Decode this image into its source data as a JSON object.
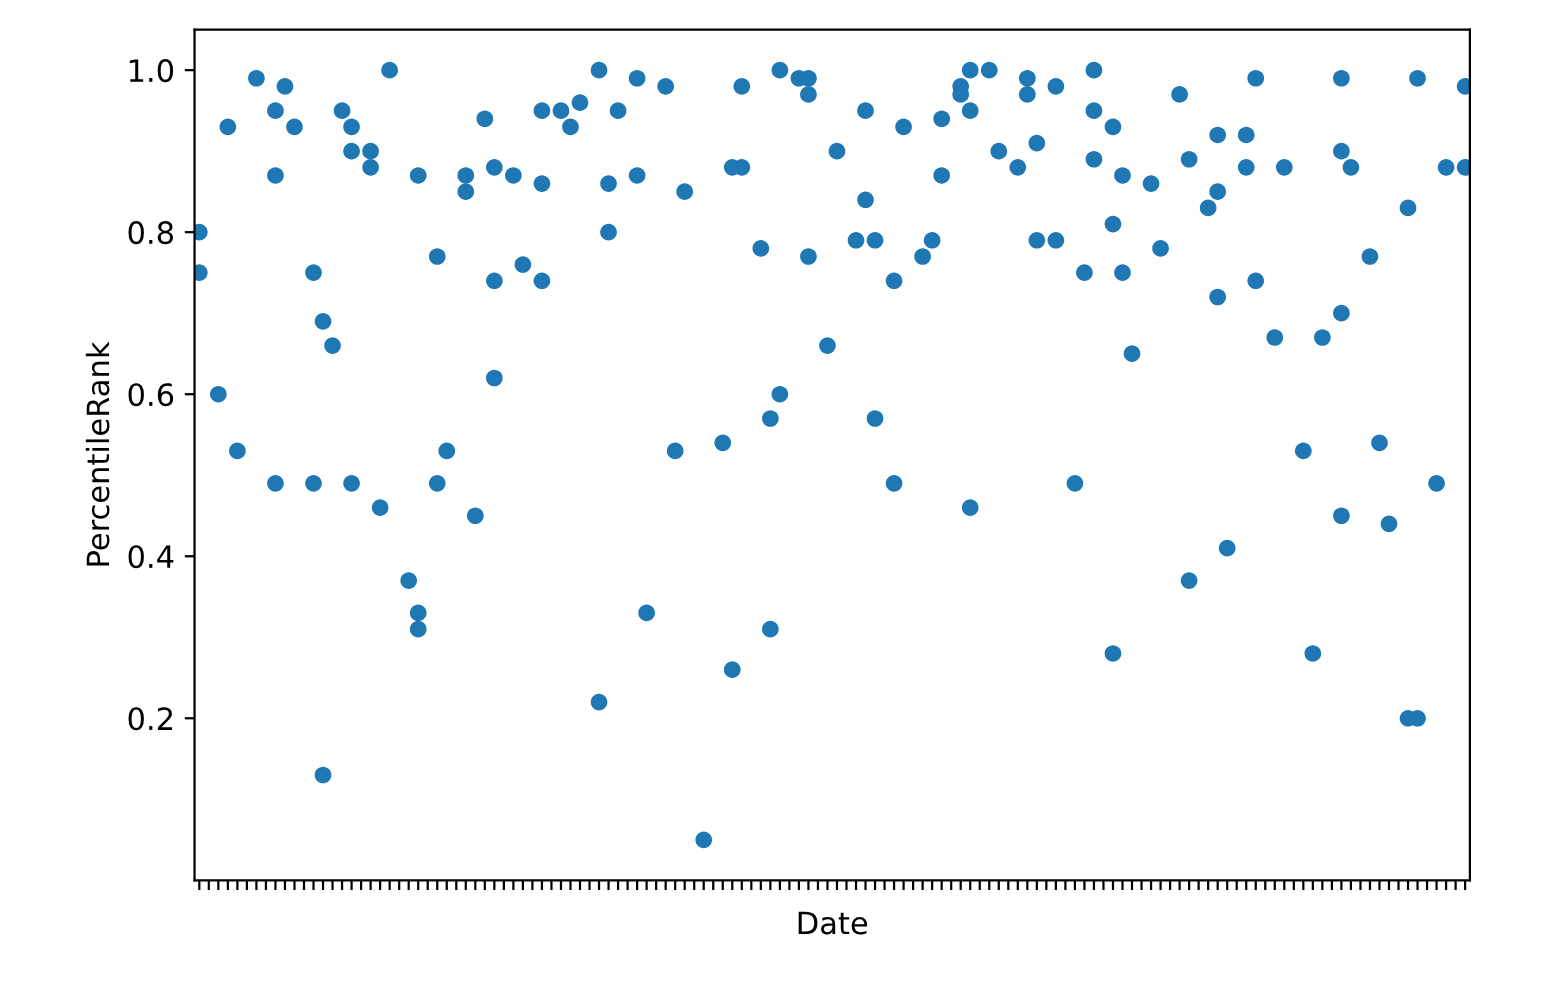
{
  "chart_data": {
    "type": "scatter",
    "xlabel": "Date",
    "ylabel": "PercentileRank",
    "marker": "circle",
    "grid": false,
    "categories": [
      null,
      null,
      null,
      null,
      null,
      null,
      null,
      null,
      null,
      null,
      null,
      null,
      null,
      null,
      null,
      null,
      null,
      null,
      null,
      null,
      null,
      null,
      null,
      null,
      null,
      null,
      null,
      null,
      null,
      null,
      null,
      null,
      null,
      null,
      null,
      null,
      null,
      null,
      null,
      null,
      null,
      null,
      null,
      null,
      null,
      null,
      null,
      null,
      null,
      null,
      null,
      null,
      null,
      null,
      null,
      null,
      null,
      null,
      null,
      null,
      null,
      null,
      null,
      null,
      null,
      null,
      null,
      null,
      null,
      null,
      null,
      null,
      null,
      null,
      null,
      null,
      null,
      null,
      null,
      null,
      null,
      null,
      null,
      null,
      null,
      null,
      null,
      null,
      null,
      null,
      null,
      null,
      null,
      null,
      null,
      null,
      null,
      null,
      null,
      null,
      null,
      null,
      null,
      null,
      null,
      null,
      null,
      null,
      null,
      null,
      null,
      null,
      null,
      null,
      null,
      null,
      null,
      null,
      null,
      null,
      null,
      null,
      null,
      null,
      null,
      null,
      null,
      null,
      null,
      null,
      null,
      null,
      null,
      null
    ],
    "ylim": [
      0.0,
      1.05
    ],
    "yticks": [
      0.2,
      0.4,
      0.6,
      0.8,
      {
        "value": 1,
        "label": "1.0"
      }
    ],
    "series": [
      {
        "color": "#1f77b4",
        "values": [
          0.8,
          null,
          0.6,
          0.93,
          0.53,
          null,
          0.99,
          null,
          0.95,
          0.98,
          0.93,
          null,
          0.75,
          0.69,
          0.66,
          0.95,
          0.93,
          null,
          0.9,
          0.46,
          1.0,
          null,
          0.37,
          0.87,
          null,
          0.77,
          0.53,
          null,
          0.87,
          0.45,
          0.94,
          0.88,
          null,
          0.87,
          0.76,
          null,
          0.95,
          null,
          0.95,
          0.93,
          0.96,
          null,
          1.0,
          0.86,
          0.95,
          null,
          0.99,
          0.33,
          null,
          0.98,
          0.53,
          0.85,
          null,
          0.05,
          null,
          0.54,
          0.88,
          0.98,
          null,
          0.78,
          0.57,
          1.0,
          null,
          0.99,
          0.99,
          null,
          0.66,
          0.9,
          null,
          0.79,
          0.95,
          0.79,
          null,
          0.74,
          0.93,
          null,
          0.77,
          0.79,
          0.94,
          null,
          0.98,
          1.0,
          null,
          1.0,
          0.9,
          null,
          0.88,
          0.99,
          0.91,
          null,
          0.98,
          null,
          0.49,
          0.75,
          1.0,
          null,
          0.93,
          0.87,
          0.65,
          null,
          0.86,
          0.78,
          null,
          0.97,
          0.89,
          null,
          0.83,
          0.92,
          0.41,
          null,
          0.92,
          0.99,
          null,
          0.67,
          0.88,
          null,
          0.53,
          0.28,
          0.67,
          null,
          0.99,
          0.88,
          null,
          0.77,
          0.54,
          0.44,
          null,
          0.83,
          0.99,
          null,
          0.49,
          0.88,
          null,
          0.98
        ]
      },
      {
        "color": "#1f77b4",
        "values": [
          0.75,
          null,
          null,
          null,
          null,
          null,
          null,
          null,
          0.87,
          null,
          null,
          null,
          0.49,
          0.13,
          null,
          null,
          0.9,
          null,
          0.88,
          null,
          null,
          null,
          null,
          0.33,
          null,
          0.49,
          null,
          null,
          0.85,
          null,
          null,
          0.74,
          null,
          null,
          null,
          null,
          0.86,
          null,
          null,
          null,
          null,
          null,
          0.22,
          0.8,
          null,
          null,
          0.87,
          null,
          null,
          null,
          null,
          null,
          null,
          null,
          null,
          null,
          0.26,
          0.88,
          null,
          null,
          0.31,
          0.6,
          null,
          null,
          0.97,
          null,
          null,
          null,
          null,
          null,
          0.84,
          0.57,
          null,
          0.49,
          null,
          null,
          null,
          null,
          0.87,
          null,
          0.97,
          0.95,
          null,
          null,
          null,
          null,
          null,
          0.97,
          0.79,
          null,
          0.79,
          null,
          null,
          null,
          0.95,
          null,
          0.81,
          0.75,
          null,
          null,
          null,
          null,
          null,
          null,
          0.37,
          null,
          null,
          0.85,
          null,
          null,
          0.88,
          0.74,
          null,
          null,
          null,
          null,
          null,
          null,
          null,
          null,
          0.9,
          null,
          null,
          null,
          null,
          null,
          null,
          0.2,
          0.2,
          null,
          null,
          null,
          null,
          0.88
        ]
      },
      {
        "color": "#1f77b4",
        "values": [
          null,
          null,
          null,
          null,
          null,
          null,
          null,
          null,
          0.49,
          null,
          null,
          null,
          null,
          null,
          null,
          null,
          0.49,
          null,
          null,
          null,
          null,
          null,
          null,
          0.31,
          null,
          null,
          null,
          null,
          null,
          null,
          null,
          0.62,
          null,
          null,
          null,
          null,
          0.74,
          null,
          null,
          null,
          null,
          null,
          null,
          null,
          null,
          null,
          null,
          null,
          null,
          null,
          null,
          null,
          null,
          null,
          null,
          null,
          null,
          null,
          null,
          null,
          null,
          null,
          null,
          null,
          0.77,
          null,
          null,
          null,
          null,
          null,
          null,
          null,
          null,
          null,
          null,
          null,
          null,
          null,
          null,
          null,
          null,
          0.46,
          null,
          null,
          null,
          null,
          null,
          null,
          null,
          null,
          null,
          null,
          null,
          null,
          0.89,
          null,
          0.28,
          null,
          null,
          null,
          null,
          null,
          null,
          null,
          null,
          null,
          null,
          0.72,
          null,
          null,
          null,
          null,
          null,
          null,
          null,
          null,
          null,
          null,
          null,
          null,
          0.7,
          null,
          null,
          null,
          null,
          null,
          null,
          null,
          null,
          null,
          null,
          null,
          null,
          null
        ]
      },
      {
        "color": "#1f77b4",
        "values": [
          null,
          null,
          null,
          null,
          null,
          null,
          null,
          null,
          null,
          null,
          null,
          null,
          null,
          null,
          null,
          null,
          null,
          null,
          null,
          null,
          null,
          null,
          null,
          null,
          null,
          null,
          null,
          null,
          null,
          null,
          null,
          null,
          null,
          null,
          null,
          null,
          null,
          null,
          null,
          null,
          null,
          null,
          null,
          null,
          null,
          null,
          null,
          null,
          null,
          null,
          null,
          null,
          null,
          null,
          null,
          null,
          null,
          null,
          null,
          null,
          null,
          null,
          null,
          null,
          null,
          null,
          null,
          null,
          null,
          null,
          null,
          null,
          null,
          null,
          null,
          null,
          null,
          null,
          null,
          null,
          null,
          null,
          null,
          null,
          null,
          null,
          null,
          null,
          null,
          null,
          null,
          null,
          null,
          null,
          null,
          null,
          null,
          null,
          null,
          null,
          null,
          null,
          null,
          null,
          null,
          null,
          null,
          null,
          null,
          null,
          null,
          null,
          null,
          null,
          null,
          null,
          null,
          null,
          null,
          null,
          0.45,
          null,
          null,
          null,
          null,
          null,
          null,
          null,
          null,
          null,
          null,
          null,
          null,
          null
        ]
      }
    ]
  }
}
